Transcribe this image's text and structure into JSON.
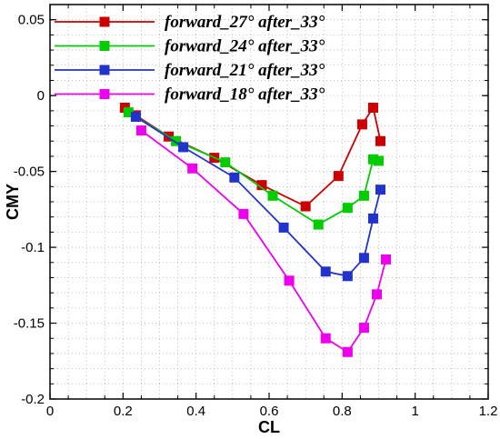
{
  "chart_data": {
    "type": "line",
    "xlabel": "CL",
    "ylabel": "CMY",
    "xlim": [
      0,
      1.2
    ],
    "ylim": [
      -0.2,
      0.06
    ],
    "x_ticks": [
      0,
      0.2,
      0.4,
      0.6,
      0.8,
      1,
      1.2
    ],
    "y_ticks": [
      -0.2,
      -0.15,
      -0.1,
      -0.05,
      0,
      0.05
    ],
    "x_tick_labels": [
      "0",
      "0.2",
      "0.4",
      "0.6",
      "0.8",
      "1",
      "1.2"
    ],
    "y_tick_labels": [
      "-0.2",
      "-0.15",
      "-0.1",
      "-0.05",
      "0",
      "0.05"
    ],
    "grid": true,
    "legend_position": "top-left",
    "series": [
      {
        "name": "forward_27° after_33°",
        "color": "#cc0000",
        "marker": "square",
        "x": [
          0.205,
          0.235,
          0.325,
          0.45,
          0.58,
          0.7,
          0.79,
          0.855,
          0.885,
          0.905
        ],
        "y": [
          -0.008,
          -0.013,
          -0.027,
          -0.041,
          -0.059,
          -0.073,
          -0.053,
          -0.019,
          -0.008,
          -0.03
        ]
      },
      {
        "name": "forward_24° after_33°",
        "color": "#00cc00",
        "marker": "square",
        "x": [
          0.215,
          0.345,
          0.48,
          0.61,
          0.735,
          0.815,
          0.86,
          0.885,
          0.9
        ],
        "y": [
          -0.011,
          -0.03,
          -0.044,
          -0.066,
          -0.085,
          -0.074,
          -0.066,
          -0.042,
          -0.043
        ]
      },
      {
        "name": "forward_21° after_33°",
        "color": "#2233cc",
        "marker": "square",
        "x": [
          0.235,
          0.365,
          0.505,
          0.64,
          0.755,
          0.815,
          0.86,
          0.885,
          0.905
        ],
        "y": [
          -0.014,
          -0.034,
          -0.054,
          -0.087,
          -0.116,
          -0.119,
          -0.107,
          -0.081,
          -0.062
        ]
      },
      {
        "name": "forward_18° after_33°",
        "color": "#ee00ee",
        "marker": "square",
        "x": [
          0.25,
          0.39,
          0.53,
          0.655,
          0.755,
          0.815,
          0.86,
          0.895,
          0.92
        ],
        "y": [
          -0.023,
          -0.048,
          -0.078,
          -0.122,
          -0.16,
          -0.169,
          -0.153,
          -0.131,
          -0.108
        ]
      }
    ]
  }
}
